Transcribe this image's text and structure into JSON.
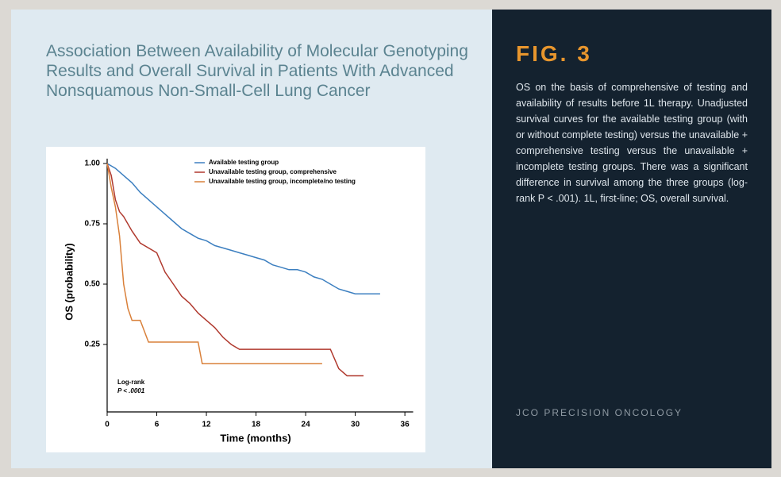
{
  "header": {
    "title": "Association Between Availability of Molecular Genotyping Results and Overall Survival in Patients With Advanced Nonsquamous Non-Small-Cell Lung Cancer"
  },
  "figure": {
    "label": "FIG. 3",
    "caption": "OS on the basis of comprehensive of testing and availability of results before 1L therapy. Unadjusted survival curves for the available testing group (with or without complete testing) versus the unavailable + comprehensive testing versus the unavailable + incomplete testing groups. There was a significant difference in survival among the three groups (log-rank P < .001). 1L, first-line; OS, overall survival.",
    "source": "JCO PRECISION ONCOLOGY"
  },
  "chart_data": {
    "type": "line",
    "x_label": "Time (months)",
    "y_label": "OS (probability)",
    "annotations": [
      "Log-rank",
      "P < .0001"
    ],
    "xlim": [
      0,
      37
    ],
    "ylim": [
      0,
      1.02
    ],
    "xticks": [
      0,
      6,
      12,
      18,
      24,
      30,
      36
    ],
    "yticks": [
      0.25,
      {
        "value": 0.5,
        "label": "0.50"
      },
      0.75,
      {
        "value": 1,
        "label": "1.00"
      }
    ],
    "series": [
      {
        "name": "Available testing group",
        "color": "#3c7fc0",
        "x": [
          0,
          1,
          2,
          3,
          4,
          5,
          6,
          7,
          8,
          9,
          10,
          11,
          12,
          13,
          14,
          15,
          16,
          17,
          18,
          19,
          20,
          21,
          22,
          23,
          24,
          25,
          26,
          27,
          28,
          29,
          30,
          33
        ],
        "values": [
          1,
          0.98,
          0.95,
          0.92,
          0.88,
          0.85,
          0.82,
          0.79,
          0.76,
          0.73,
          0.71,
          0.69,
          0.68,
          0.66,
          0.65,
          0.64,
          0.63,
          0.62,
          0.61,
          0.6,
          0.58,
          0.57,
          0.56,
          0.56,
          0.55,
          0.53,
          0.52,
          0.5,
          0.48,
          0.47,
          0.46,
          0.46
        ]
      },
      {
        "name": "Unavailable testing group, comprehensive",
        "color": "#b0392e",
        "x": [
          0,
          0.5,
          1,
          1.5,
          2,
          3,
          4,
          6,
          7,
          8,
          9,
          10,
          11,
          12,
          13,
          14,
          15,
          16,
          27,
          28,
          29,
          31
        ],
        "values": [
          1,
          0.95,
          0.85,
          0.8,
          0.78,
          0.72,
          0.67,
          0.63,
          0.55,
          0.5,
          0.45,
          0.42,
          0.38,
          0.35,
          0.32,
          0.28,
          0.25,
          0.23,
          0.23,
          0.15,
          0.12,
          0.12
        ]
      },
      {
        "name": "Unavailable testing group, incomplete/no testing",
        "color": "#d9803a",
        "x": [
          0,
          0.5,
          1,
          1.5,
          2,
          2.5,
          3,
          4,
          5,
          11,
          11.5,
          26
        ],
        "values": [
          1,
          0.9,
          0.82,
          0.7,
          0.5,
          0.4,
          0.35,
          0.35,
          0.26,
          0.26,
          0.17,
          0.17
        ]
      }
    ]
  }
}
